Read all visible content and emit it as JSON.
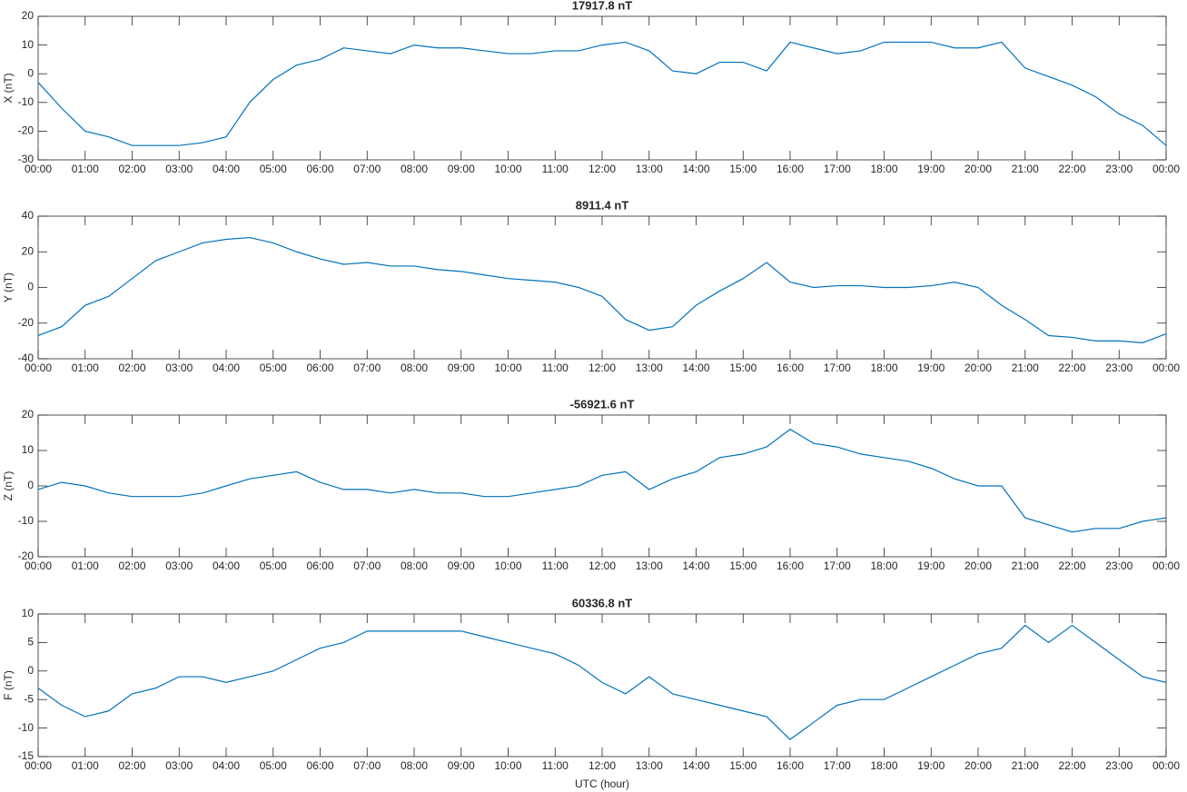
{
  "chart_data": [
    {
      "type": "line",
      "title": "17917.8 nT",
      "ylabel": "X (nT)",
      "x": [
        0,
        0.5,
        1,
        1.5,
        2,
        2.5,
        3,
        3.5,
        4,
        4.5,
        5,
        5.5,
        6,
        6.5,
        7,
        7.5,
        8,
        8.5,
        9,
        9.5,
        10,
        10.5,
        11,
        11.5,
        12,
        12.5,
        13,
        13.5,
        14,
        14.5,
        15,
        15.5,
        16,
        16.5,
        17,
        17.5,
        18,
        18.5,
        19,
        19.5,
        20,
        20.5,
        21,
        21.5,
        22,
        22.5,
        23,
        23.5,
        24
      ],
      "series": [
        {
          "color": "#0072bd",
          "values": [
            -3,
            -12,
            -20,
            -22,
            -25,
            -25,
            -25,
            -24,
            -22,
            -10,
            -2,
            3,
            5,
            9,
            8,
            7,
            10,
            9,
            9,
            8,
            7,
            7,
            8,
            8,
            10,
            11,
            8,
            1,
            0,
            4,
            4,
            1,
            11,
            9,
            7,
            8,
            11,
            11,
            11,
            9,
            9,
            11,
            2,
            -1,
            -4,
            -8,
            -14,
            -18,
            -25
          ]
        }
      ],
      "xlim": [
        0,
        24
      ],
      "ylim": [
        -30,
        20
      ],
      "yticks": [
        -30,
        -20,
        -10,
        0,
        10,
        20
      ],
      "xticks": [
        {
          "value": 0,
          "label": "00:00"
        },
        {
          "value": 1,
          "label": "01:00"
        },
        {
          "value": 2,
          "label": "02:00"
        },
        {
          "value": 3,
          "label": "03:00"
        },
        {
          "value": 4,
          "label": "04:00"
        },
        {
          "value": 5,
          "label": "05:00"
        },
        {
          "value": 6,
          "label": "06:00"
        },
        {
          "value": 7,
          "label": "07:00"
        },
        {
          "value": 8,
          "label": "08:00"
        },
        {
          "value": 9,
          "label": "09:00"
        },
        {
          "value": 10,
          "label": "10:00"
        },
        {
          "value": 11,
          "label": "11:00"
        },
        {
          "value": 12,
          "label": "12:00"
        },
        {
          "value": 13,
          "label": "13:00"
        },
        {
          "value": 14,
          "label": "14:00"
        },
        {
          "value": 15,
          "label": "15:00"
        },
        {
          "value": 16,
          "label": "16:00"
        },
        {
          "value": 17,
          "label": "17:00"
        },
        {
          "value": 18,
          "label": "18:00"
        },
        {
          "value": 19,
          "label": "19:00"
        },
        {
          "value": 20,
          "label": "20:00"
        },
        {
          "value": 21,
          "label": "21:00"
        },
        {
          "value": 22,
          "label": "22:00"
        },
        {
          "value": 23,
          "label": "23:00"
        },
        {
          "value": 24,
          "label": "00:00"
        }
      ]
    },
    {
      "type": "line",
      "title": "8911.4 nT",
      "ylabel": "Y (nT)",
      "x": [
        0,
        0.5,
        1,
        1.5,
        2,
        2.5,
        3,
        3.5,
        4,
        4.5,
        5,
        5.5,
        6,
        6.5,
        7,
        7.5,
        8,
        8.5,
        9,
        9.5,
        10,
        10.5,
        11,
        11.5,
        12,
        12.5,
        13,
        13.5,
        14,
        14.5,
        15,
        15.5,
        16,
        16.5,
        17,
        17.5,
        18,
        18.5,
        19,
        19.5,
        20,
        20.5,
        21,
        21.5,
        22,
        22.5,
        23,
        23.5,
        24
      ],
      "series": [
        {
          "color": "#0072bd",
          "values": [
            -27,
            -22,
            -10,
            -5,
            5,
            15,
            20,
            25,
            27,
            28,
            25,
            20,
            16,
            13,
            14,
            12,
            12,
            10,
            9,
            7,
            5,
            4,
            3,
            0,
            -5,
            -18,
            -24,
            -22,
            -10,
            -2,
            5,
            14,
            3,
            0,
            1,
            1,
            0,
            0,
            1,
            3,
            0,
            -10,
            -18,
            -27,
            -28,
            -30,
            -30,
            -31,
            -26
          ]
        }
      ],
      "xlim": [
        0,
        24
      ],
      "ylim": [
        -40,
        40
      ],
      "yticks": [
        -40,
        -20,
        0,
        20,
        40
      ],
      "xticks": [
        {
          "value": 0,
          "label": "00:00"
        },
        {
          "value": 1,
          "label": "01:00"
        },
        {
          "value": 2,
          "label": "02:00"
        },
        {
          "value": 3,
          "label": "03:00"
        },
        {
          "value": 4,
          "label": "04:00"
        },
        {
          "value": 5,
          "label": "05:00"
        },
        {
          "value": 6,
          "label": "06:00"
        },
        {
          "value": 7,
          "label": "07:00"
        },
        {
          "value": 8,
          "label": "08:00"
        },
        {
          "value": 9,
          "label": "09:00"
        },
        {
          "value": 10,
          "label": "10:00"
        },
        {
          "value": 11,
          "label": "11:00"
        },
        {
          "value": 12,
          "label": "12:00"
        },
        {
          "value": 13,
          "label": "13:00"
        },
        {
          "value": 14,
          "label": "14:00"
        },
        {
          "value": 15,
          "label": "15:00"
        },
        {
          "value": 16,
          "label": "16:00"
        },
        {
          "value": 17,
          "label": "17:00"
        },
        {
          "value": 18,
          "label": "18:00"
        },
        {
          "value": 19,
          "label": "19:00"
        },
        {
          "value": 20,
          "label": "20:00"
        },
        {
          "value": 21,
          "label": "21:00"
        },
        {
          "value": 22,
          "label": "22:00"
        },
        {
          "value": 23,
          "label": "23:00"
        },
        {
          "value": 24,
          "label": "00:00"
        }
      ]
    },
    {
      "type": "line",
      "title": "-56921.6 nT",
      "ylabel": "Z (nT)",
      "x": [
        0,
        0.5,
        1,
        1.5,
        2,
        2.5,
        3,
        3.5,
        4,
        4.5,
        5,
        5.5,
        6,
        6.5,
        7,
        7.5,
        8,
        8.5,
        9,
        9.5,
        10,
        10.5,
        11,
        11.5,
        12,
        12.5,
        13,
        13.5,
        14,
        14.5,
        15,
        15.5,
        16,
        16.5,
        17,
        17.5,
        18,
        18.5,
        19,
        19.5,
        20,
        20.5,
        21,
        21.5,
        22,
        22.5,
        23,
        23.5,
        24
      ],
      "series": [
        {
          "color": "#0072bd",
          "values": [
            -1,
            1,
            0,
            -2,
            -3,
            -3,
            -3,
            -2,
            0,
            2,
            3,
            4,
            1,
            -1,
            -1,
            -2,
            -1,
            -2,
            -2,
            -3,
            -3,
            -2,
            -1,
            0,
            3,
            4,
            -1,
            2,
            4,
            8,
            9,
            11,
            16,
            12,
            11,
            9,
            8,
            7,
            5,
            2,
            0,
            0,
            -9,
            -11,
            -13,
            -12,
            -12,
            -10,
            -9
          ]
        }
      ],
      "xlim": [
        0,
        24
      ],
      "ylim": [
        -20,
        20
      ],
      "yticks": [
        -20,
        -10,
        0,
        10,
        20
      ],
      "xticks": [
        {
          "value": 0,
          "label": "00:00"
        },
        {
          "value": 1,
          "label": "01:00"
        },
        {
          "value": 2,
          "label": "02:00"
        },
        {
          "value": 3,
          "label": "03:00"
        },
        {
          "value": 4,
          "label": "04:00"
        },
        {
          "value": 5,
          "label": "05:00"
        },
        {
          "value": 6,
          "label": "06:00"
        },
        {
          "value": 7,
          "label": "07:00"
        },
        {
          "value": 8,
          "label": "08:00"
        },
        {
          "value": 9,
          "label": "09:00"
        },
        {
          "value": 10,
          "label": "10:00"
        },
        {
          "value": 11,
          "label": "11:00"
        },
        {
          "value": 12,
          "label": "12:00"
        },
        {
          "value": 13,
          "label": "13:00"
        },
        {
          "value": 14,
          "label": "14:00"
        },
        {
          "value": 15,
          "label": "15:00"
        },
        {
          "value": 16,
          "label": "16:00"
        },
        {
          "value": 17,
          "label": "17:00"
        },
        {
          "value": 18,
          "label": "18:00"
        },
        {
          "value": 19,
          "label": "19:00"
        },
        {
          "value": 20,
          "label": "20:00"
        },
        {
          "value": 21,
          "label": "21:00"
        },
        {
          "value": 22,
          "label": "22:00"
        },
        {
          "value": 23,
          "label": "23:00"
        },
        {
          "value": 24,
          "label": "00:00"
        }
      ]
    },
    {
      "type": "line",
      "title": "60336.8 nT",
      "ylabel": "F (nT)",
      "xlabel": "UTC (hour)",
      "x": [
        0,
        0.5,
        1,
        1.5,
        2,
        2.5,
        3,
        3.5,
        4,
        4.5,
        5,
        5.5,
        6,
        6.5,
        7,
        7.5,
        8,
        8.5,
        9,
        9.5,
        10,
        10.5,
        11,
        11.5,
        12,
        12.5,
        13,
        13.5,
        14,
        14.5,
        15,
        15.5,
        16,
        16.5,
        17,
        17.5,
        18,
        18.5,
        19,
        19.5,
        20,
        20.5,
        21,
        21.5,
        22,
        22.5,
        23,
        23.5,
        24
      ],
      "series": [
        {
          "color": "#0072bd",
          "values": [
            -3,
            -6,
            -8,
            -7,
            -4,
            -3,
            -1,
            -1,
            -2,
            -1,
            0,
            2,
            4,
            5,
            7,
            7,
            7,
            7,
            7,
            6,
            5,
            4,
            3,
            1,
            -2,
            -4,
            -1,
            -4,
            -5,
            -6,
            -7,
            -8,
            -12,
            -9,
            -6,
            -5,
            -5,
            -3,
            -1,
            1,
            3,
            4,
            8,
            5,
            8,
            5,
            2,
            -1,
            -2
          ]
        }
      ],
      "xlim": [
        0,
        24
      ],
      "ylim": [
        -15,
        10
      ],
      "yticks": [
        -15,
        -10,
        -5,
        0,
        5,
        10
      ],
      "xticks": [
        {
          "value": 0,
          "label": "00:00"
        },
        {
          "value": 1,
          "label": "01:00"
        },
        {
          "value": 2,
          "label": "02:00"
        },
        {
          "value": 3,
          "label": "03:00"
        },
        {
          "value": 4,
          "label": "04:00"
        },
        {
          "value": 5,
          "label": "05:00"
        },
        {
          "value": 6,
          "label": "06:00"
        },
        {
          "value": 7,
          "label": "07:00"
        },
        {
          "value": 8,
          "label": "08:00"
        },
        {
          "value": 9,
          "label": "09:00"
        },
        {
          "value": 10,
          "label": "10:00"
        },
        {
          "value": 11,
          "label": "11:00"
        },
        {
          "value": 12,
          "label": "12:00"
        },
        {
          "value": 13,
          "label": "13:00"
        },
        {
          "value": 14,
          "label": "14:00"
        },
        {
          "value": 15,
          "label": "15:00"
        },
        {
          "value": 16,
          "label": "16:00"
        },
        {
          "value": 17,
          "label": "17:00"
        },
        {
          "value": 18,
          "label": "18:00"
        },
        {
          "value": 19,
          "label": "19:00"
        },
        {
          "value": 20,
          "label": "20:00"
        },
        {
          "value": 21,
          "label": "21:00"
        },
        {
          "value": 22,
          "label": "22:00"
        },
        {
          "value": 23,
          "label": "23:00"
        },
        {
          "value": 24,
          "label": "00:00"
        }
      ]
    }
  ]
}
